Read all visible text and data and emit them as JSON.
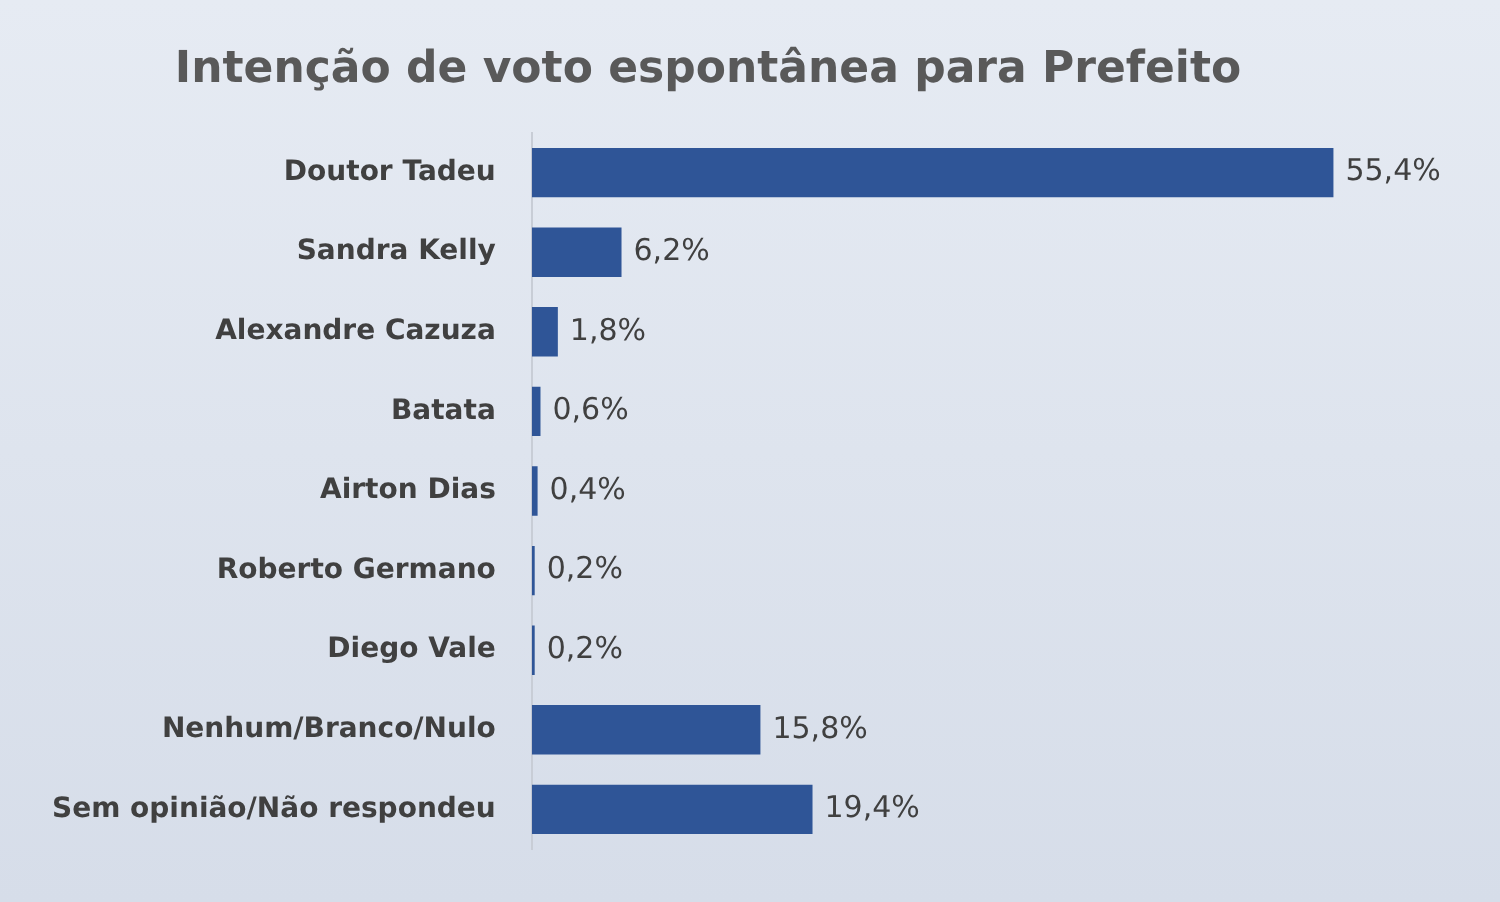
{
  "chart_data": {
    "type": "bar",
    "orientation": "horizontal",
    "title": "Intenção de voto espontânea para Prefeito",
    "categories": [
      "Doutor Tadeu",
      "Sandra Kelly",
      "Alexandre Cazuza",
      "Batata",
      "Airton Dias",
      "Roberto Germano",
      "Diego Vale",
      "Nenhum/Branco/Nulo",
      "Sem opinião/Não respondeu"
    ],
    "values": [
      55.4,
      6.2,
      1.8,
      0.6,
      0.4,
      0.2,
      0.2,
      15.8,
      19.4
    ],
    "value_labels": [
      "55,4%",
      "6,2%",
      "1,8%",
      "0,6%",
      "0,4%",
      "0,2%",
      "0,2%",
      "15,8%",
      "19,4%"
    ],
    "color": "#2f5597"
  }
}
